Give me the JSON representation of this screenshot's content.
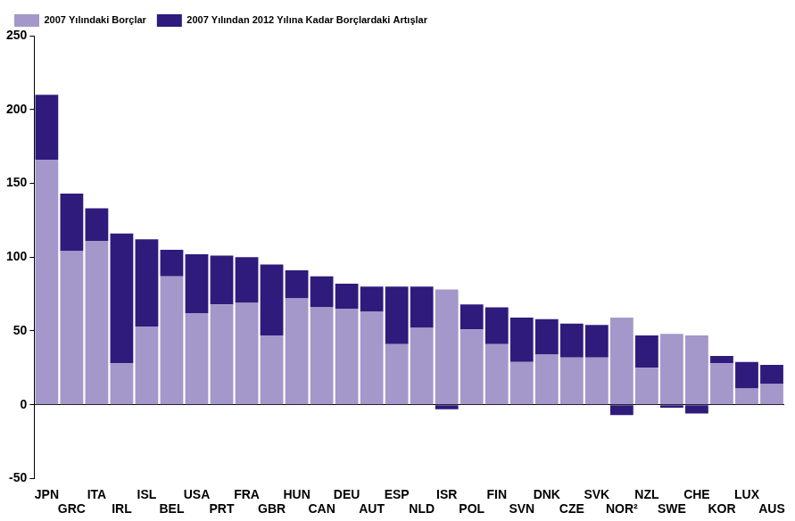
{
  "chart_data": {
    "type": "bar",
    "categories": [
      "JPN",
      "GRC",
      "ITA",
      "IRL",
      "ISL",
      "BEL",
      "USA",
      "PRT",
      "FRA",
      "GBR",
      "HUN",
      "CAN",
      "DEU",
      "AUT",
      "ESP",
      "NLD",
      "ISR",
      "POL",
      "FIN",
      "SVN",
      "DNK",
      "CZE",
      "SVK",
      "NOR²",
      "NZL",
      "SWE",
      "CHE",
      "KOR",
      "LUX",
      "AUS"
    ],
    "series": [
      {
        "name": "2007 Yılındaki Borçlar",
        "color": "#a497ca",
        "values": [
          166,
          104,
          111,
          28,
          53,
          87,
          62,
          68,
          69,
          47,
          72,
          66,
          65,
          63,
          41,
          52,
          78,
          51,
          41,
          29,
          34,
          32,
          32,
          59,
          25,
          48,
          47,
          28,
          11,
          14
        ]
      },
      {
        "name": "2007 Yılından 2012 Yılına Kadar Borçlardaki Artışlar",
        "color": "#2f1b7c",
        "values": [
          44,
          39,
          22,
          88,
          59,
          18,
          40,
          33,
          31,
          48,
          19,
          21,
          17,
          17,
          39,
          28,
          -3,
          17,
          25,
          30,
          24,
          23,
          22,
          -7,
          22,
          -2,
          -6,
          5,
          18,
          13
        ]
      }
    ],
    "ylim": [
      -50,
      250
    ],
    "yticks": [
      -50,
      0,
      50,
      100,
      150,
      200,
      250
    ],
    "stacked": true,
    "grid": false,
    "legend": "top-left"
  }
}
